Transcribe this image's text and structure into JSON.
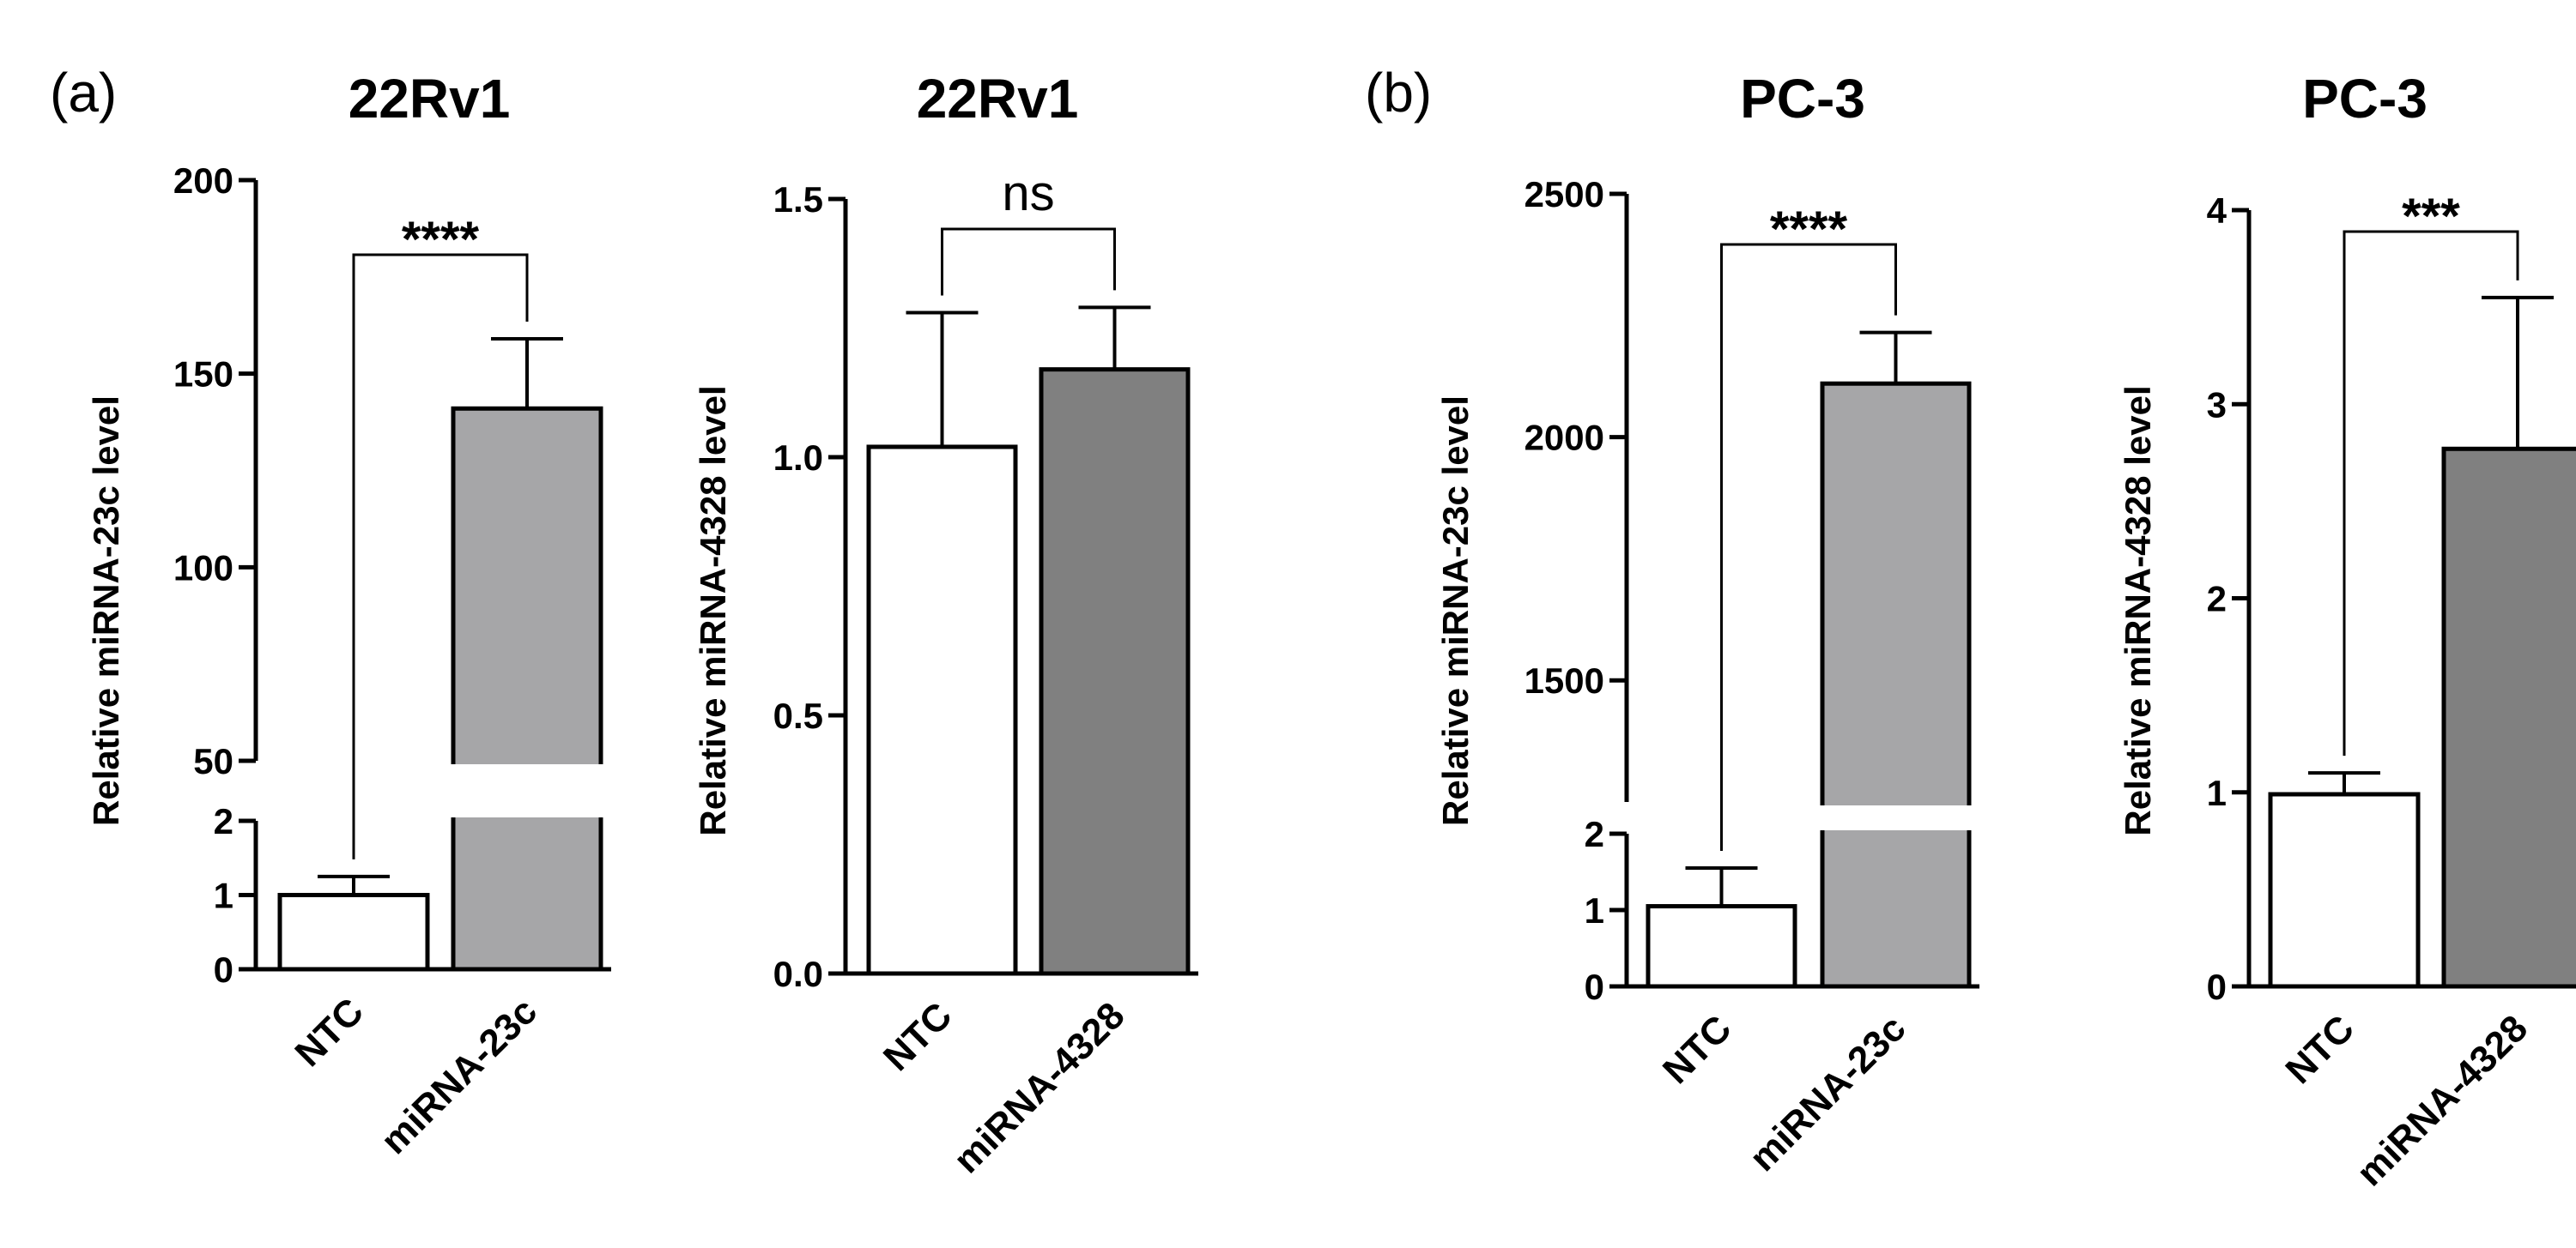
{
  "panel_labels": [
    "(a)",
    "(b)"
  ],
  "chart_data": [
    {
      "type": "bar",
      "title": "22Rv1",
      "ylabel": "Relative miRNA-23c level",
      "categories": [
        "NTC",
        "miRNA-23c"
      ],
      "values": [
        1.0,
        141
      ],
      "errors": [
        0.25,
        18
      ],
      "colors": [
        "#ffffff",
        "#a6a6a8"
      ],
      "axis_break": true,
      "ylim_lower": [
        0,
        2
      ],
      "ylim_upper": [
        50,
        200
      ],
      "yticks_lower": [
        "0",
        "1",
        "2"
      ],
      "yticks_upper": [
        "50",
        "100",
        "150",
        "200"
      ],
      "significance": "****"
    },
    {
      "type": "bar",
      "title": "22Rv1",
      "ylabel": "Relative miRNA-4328 level",
      "categories": [
        "NTC",
        "miRNA-4328"
      ],
      "values": [
        1.02,
        1.17
      ],
      "errors": [
        0.26,
        0.12
      ],
      "colors": [
        "#ffffff",
        "#808080"
      ],
      "axis_break": false,
      "ylim": [
        0,
        1.5
      ],
      "yticks": [
        "0.0",
        "0.5",
        "1.0",
        "1.5"
      ],
      "significance": "ns"
    },
    {
      "type": "bar",
      "title": "PC-3",
      "ylabel": "Relative miRNA-23c level",
      "categories": [
        "NTC",
        "miRNA-23c"
      ],
      "values": [
        1.05,
        2110
      ],
      "errors": [
        0.5,
        105
      ],
      "colors": [
        "#ffffff",
        "#a6a6a8"
      ],
      "axis_break": true,
      "ylim_lower": [
        0,
        2
      ],
      "ylim_upper": [
        1250,
        2500
      ],
      "yticks_lower": [
        "0",
        "1",
        "2"
      ],
      "yticks_upper": [
        "1500",
        "2000",
        "2500"
      ],
      "significance": "****"
    },
    {
      "type": "bar",
      "title": "PC-3",
      "ylabel": "Relative miRNA-4328 level",
      "categories": [
        "NTC",
        "miRNA-4328"
      ],
      "values": [
        0.99,
        2.77
      ],
      "errors": [
        0.11,
        0.78
      ],
      "colors": [
        "#ffffff",
        "#808080"
      ],
      "axis_break": false,
      "ylim": [
        0,
        4
      ],
      "yticks": [
        "0",
        "1",
        "2",
        "3",
        "4"
      ],
      "significance": "***"
    }
  ]
}
